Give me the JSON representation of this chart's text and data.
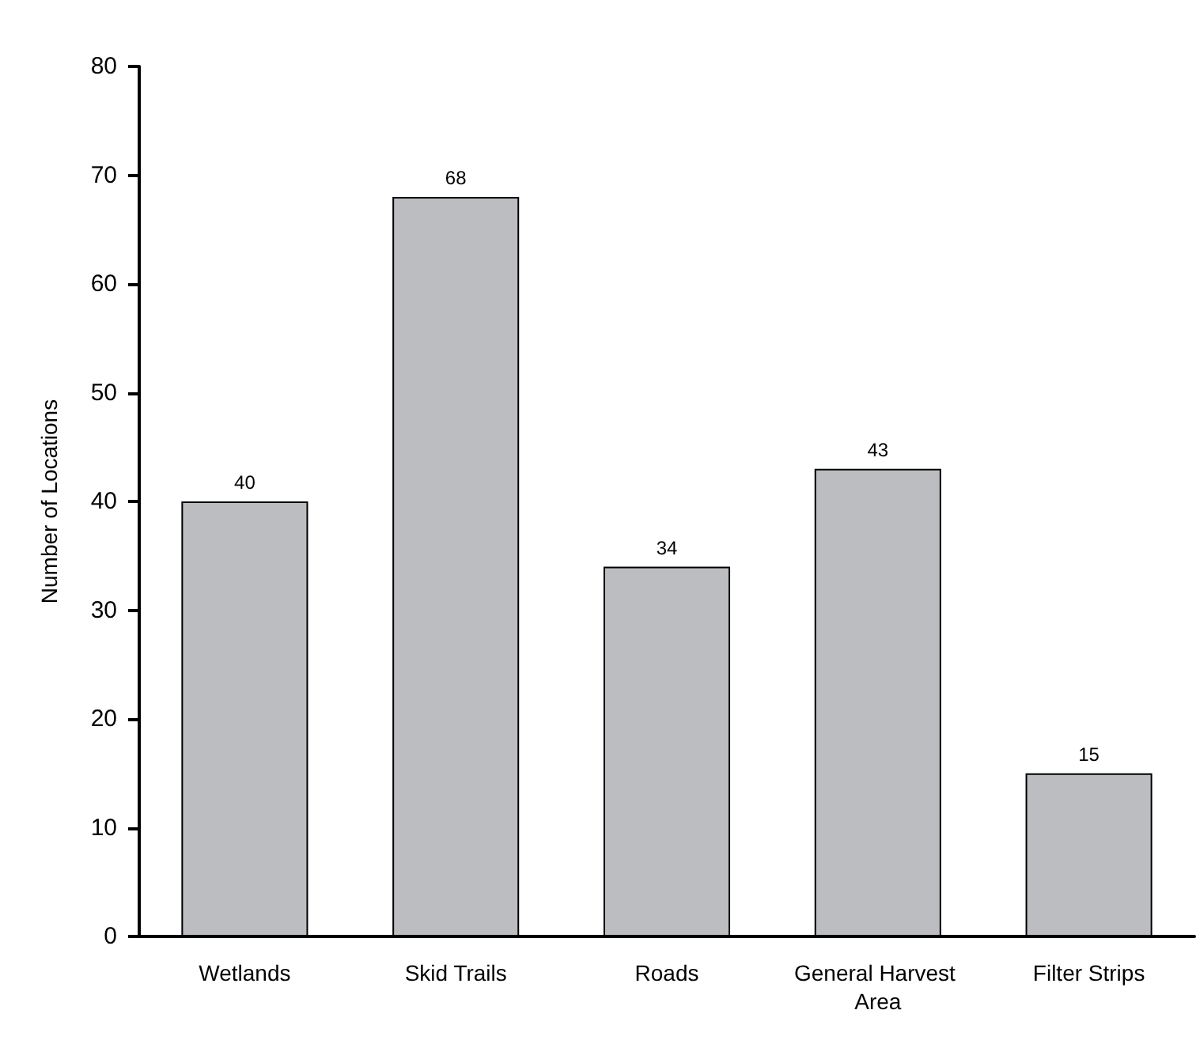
{
  "chart_data": {
    "type": "bar",
    "ylabel": "Number of Locations",
    "categories": [
      "Wetlands",
      "Skid Trails",
      "Roads",
      "General Harvest Area",
      "Filter Strips"
    ],
    "values": [
      40,
      68,
      34,
      43,
      15
    ],
    "color": "#bcbdc1",
    "ylim": [
      0,
      80
    ],
    "yticks": [
      0,
      10,
      20,
      30,
      40,
      50,
      60,
      70,
      80
    ],
    "data_labels": true
  }
}
